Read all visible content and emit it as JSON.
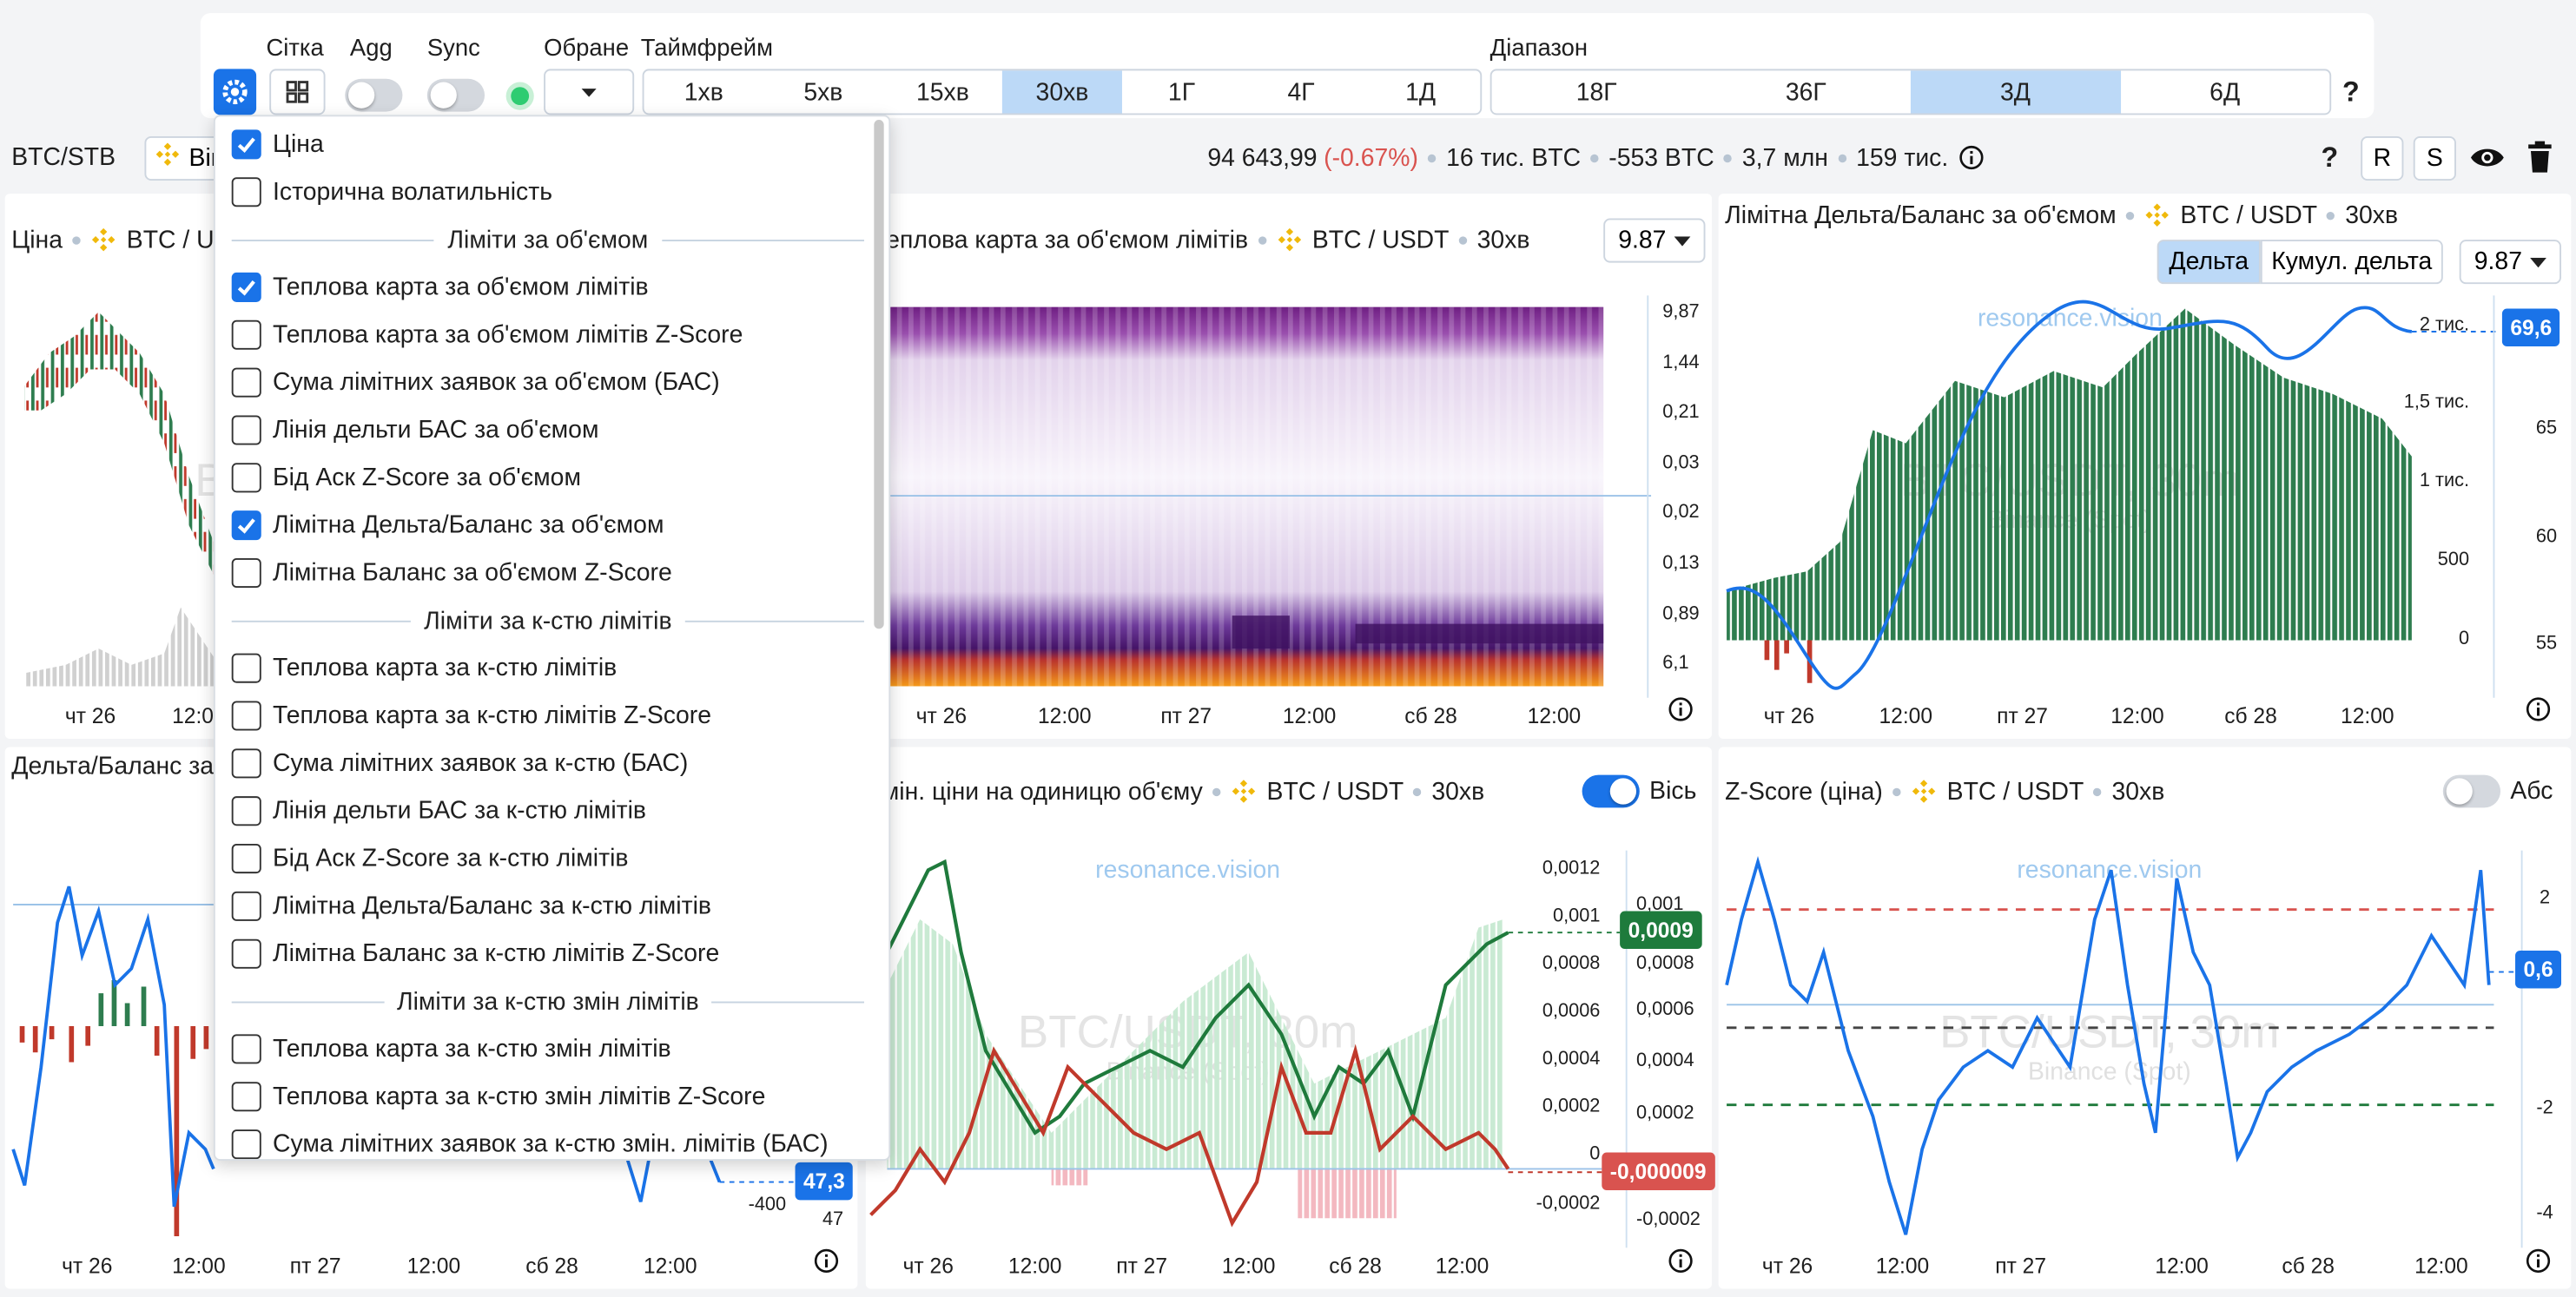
{
  "toolbar": {
    "grid": {
      "label": "Сітка"
    },
    "agg": {
      "label": "Agg",
      "on": false
    },
    "sync": {
      "label": "Sync",
      "on": false
    },
    "favorites": {
      "label": "Обране"
    },
    "timeframe": {
      "label": "Таймфрейм",
      "options": [
        {
          "label": "1хв"
        },
        {
          "label": "5хв"
        },
        {
          "label": "15хв"
        },
        {
          "label": "30хв",
          "active": true
        },
        {
          "label": "1Г"
        },
        {
          "label": "4Г"
        },
        {
          "label": "1Д"
        }
      ]
    },
    "range": {
      "label": "Діапазон",
      "options": [
        {
          "label": "18Г"
        },
        {
          "label": "36Г"
        },
        {
          "label": "3Д",
          "active": true
        },
        {
          "label": "6Д"
        }
      ]
    },
    "help": "?"
  },
  "info_bar": {
    "symbol": "BTC/STB",
    "exchange": "Binance",
    "price": "94 643,99",
    "change": "(-0.67%)",
    "stats": [
      "16 тис. BTC",
      "-553 BTC",
      "3,7 млн",
      "159 тис."
    ],
    "help": "?",
    "buttons": [
      "R",
      "S"
    ]
  },
  "watermark": {
    "site": "resonance.vision",
    "pair": "BTC/USDT, 30m",
    "exchange": "Binance (Spot)"
  },
  "panels": [
    {
      "title": "Ціна",
      "pair": "BTC / USDT",
      "x_labels": [
        "чт 26",
        "12:00"
      ]
    },
    {
      "title": "Теплова карта за об'ємом лімітів",
      "pair": "BTC / USDT",
      "timeframe": "30хв",
      "select": "9.87",
      "y_labels": [
        "9,87",
        "1,44",
        "0,21",
        "0,03",
        "0,02",
        "0,13",
        "0,89",
        "6,1"
      ],
      "x_labels": [
        "чт 26",
        "12:00",
        "пт 27",
        "12:00",
        "сб 28",
        "12:00"
      ]
    },
    {
      "title": "Лімітна Дельта/Баланс за об'ємом",
      "pair": "BTC / USDT",
      "timeframe": "30хв",
      "select": "9.87",
      "buttons": [
        {
          "label": "Дельта",
          "active": true
        },
        {
          "label": "Кумул. дельта"
        }
      ],
      "y_labels": [
        "2 тис.",
        "1,5 тис.",
        "1 тис.",
        "500",
        "0"
      ],
      "y2_labels": [
        "65",
        "60",
        "55"
      ],
      "badges": [
        {
          "label": "69,6",
          "color": "#1a73e8"
        }
      ],
      "x_labels": [
        "чт 26",
        "12:00",
        "пт 27",
        "12:00",
        "сб 28",
        "12:00"
      ]
    },
    {
      "title": "Дельта/Баланс за",
      "y_labels": [
        "-400",
        "47"
      ],
      "badges": [
        {
          "label": "47,3",
          "color": "#1a73e8"
        }
      ],
      "x_labels": [
        "чт 26",
        "12:00",
        "пт 27",
        "12:00",
        "сб 28",
        "12:00"
      ]
    },
    {
      "title": "мін. ціни на одиницю об'єму",
      "pair": "BTC / USDT",
      "timeframe": "30хв",
      "toggle": {
        "label": "Вісь",
        "on": true
      },
      "y_labels": [
        "0,0012",
        "0,001",
        "0,0008",
        "0,0006",
        "0,0004",
        "0,0002",
        "0",
        "-0,0002"
      ],
      "y2_labels": [
        "0,001",
        "0,0008",
        "0,0006",
        "0,0004",
        "0,0002",
        "-0,0002"
      ],
      "badges": [
        {
          "label": "0,0009",
          "color": "#1e7b3c"
        },
        {
          "label": "-0,000009",
          "color": "#d9534f"
        }
      ],
      "x_labels": [
        "чт 26",
        "12:00",
        "пт 27",
        "12:00",
        "сб 28",
        "12:00"
      ]
    },
    {
      "title": "Z-Score (ціна)",
      "pair": "BTC / USDT",
      "timeframe": "30хв",
      "toggle": {
        "label": "Абс",
        "on": false
      },
      "y_labels": [
        "2",
        "-2",
        "-4"
      ],
      "badges": [
        {
          "label": "0,6",
          "color": "#1a73e8"
        }
      ],
      "x_labels": [
        "чт 26",
        "12:00",
        "пт 27",
        "12:00",
        "сб 28",
        "12:00"
      ]
    }
  ],
  "settings_menu": {
    "items": [
      {
        "label": "Ціна",
        "checked": true
      },
      {
        "label": "Історична волатильність",
        "checked": false
      },
      {
        "section": "Ліміти за об'ємом"
      },
      {
        "label": "Теплова карта за об'ємом лімітів",
        "checked": true
      },
      {
        "label": "Теплова карта за об'ємом лімітів Z-Score",
        "checked": false
      },
      {
        "label": "Сума лімітних заявок за об'ємом (БАС)",
        "checked": false
      },
      {
        "label": "Лінія дельти БАС за об'ємом",
        "checked": false
      },
      {
        "label": "Бід Аск Z-Score за об'ємом",
        "checked": false
      },
      {
        "label": "Лімітна Дельта/Баланс за об'ємом",
        "checked": true
      },
      {
        "label": "Лімітна Баланс за об'ємом Z-Score",
        "checked": false
      },
      {
        "section": "Ліміти за к-стю лімітів"
      },
      {
        "label": "Теплова карта за к-стю лімітів",
        "checked": false
      },
      {
        "label": "Теплова карта за к-стю лімітів Z-Score",
        "checked": false
      },
      {
        "label": "Сума лімітних заявок за к-стю (БАС)",
        "checked": false
      },
      {
        "label": "Лінія дельти БАС за к-стю лімітів",
        "checked": false
      },
      {
        "label": "Бід Аск Z-Score за к-стю лімітів",
        "checked": false
      },
      {
        "label": "Лімітна Дельта/Баланс за к-стю лімітів",
        "checked": false
      },
      {
        "label": "Лімітна Баланс за к-стю лімітів Z-Score",
        "checked": false
      },
      {
        "section": "Ліміти за к-стю змін лімітів"
      },
      {
        "label": "Теплова карта за к-стю змін лімітів",
        "checked": false
      },
      {
        "label": "Теплова карта за к-стю змін лімітів Z-Score",
        "checked": false
      },
      {
        "label": "Сума лімітних заявок за к-стю змін. лімітів (БАС)",
        "checked": false
      }
    ]
  }
}
